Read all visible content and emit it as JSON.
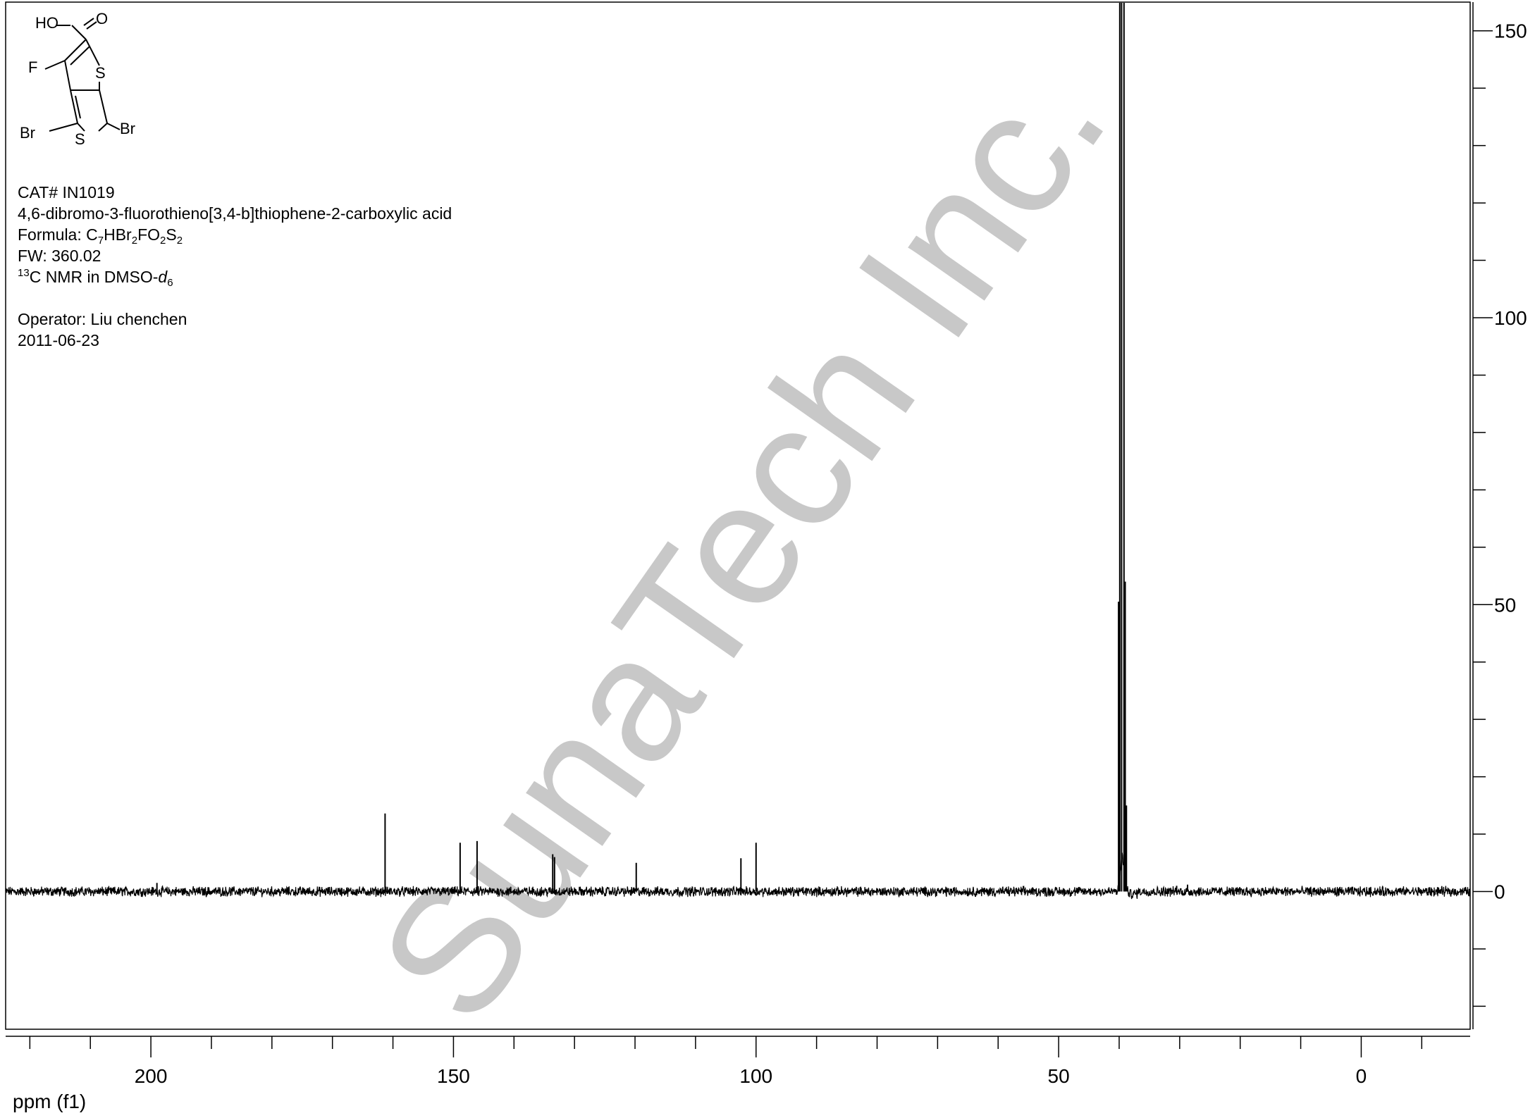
{
  "chart_data": {
    "type": "line",
    "title": "",
    "xlabel": "ppm (f1)",
    "ylabel": "",
    "xlim": [
      224,
      -18
    ],
    "ylim": [
      -24,
      155
    ],
    "x_ticks": [
      200,
      150,
      100,
      50,
      0
    ],
    "y_ticks": [
      150,
      100,
      50,
      0
    ],
    "grid": false,
    "legend": "none",
    "line_color": "#000000",
    "series": [
      {
        "peaks": [
          {
            "x": 199.0,
            "y": 1.5
          },
          {
            "x": 161.3,
            "y": 13.6
          },
          {
            "x": 148.9,
            "y": 8.5
          },
          {
            "x": 146.1,
            "y": 8.8
          },
          {
            "x": 133.6,
            "y": 6.5
          },
          {
            "x": 133.3,
            "y": 6.0
          },
          {
            "x": 119.8,
            "y": 5.0
          },
          {
            "x": 102.5,
            "y": 5.8
          },
          {
            "x": 100.0,
            "y": 8.5
          },
          {
            "x": 40.1,
            "y": 50.5
          },
          {
            "x": 39.9,
            "y": 290
          },
          {
            "x": 39.6,
            "y": 320
          },
          {
            "x": 39.2,
            "y": 300
          },
          {
            "x": 39.0,
            "y": 54.0
          },
          {
            "x": 38.8,
            "y": 15.0
          },
          {
            "x": 30.5,
            "y": 1.0
          },
          {
            "x": 28.7,
            "y": 1.2
          }
        ]
      }
    ]
  },
  "sample_info": {
    "cat": "CAT# IN1019",
    "name": "4,6-dibromo-3-fluorothieno[3,4-b]thiophene-2-carboxylic acid",
    "formula_prefix": "Formula: C",
    "formula_c": "7",
    "formula_h_br": "HBr",
    "formula_br": "2",
    "formula_fo": "FO",
    "formula_o": "2",
    "formula_s": "S",
    "formula_s_count": "2",
    "fw": "FW: 360.02",
    "nmr_isotope": "13",
    "nmr_text": "C NMR in DMSO-",
    "nmr_solvent_italic": "d",
    "nmr_solvent_sub": "6",
    "operator": "Operator: Liu chenchen",
    "date": "2011-06-23"
  },
  "structure": {
    "atoms": {
      "ho": "HO",
      "o": "O",
      "f": "F",
      "s_top": "S",
      "s_bottom": "S",
      "br_left": "Br",
      "br_right": "Br"
    }
  },
  "watermark": "SunaTech Inc."
}
